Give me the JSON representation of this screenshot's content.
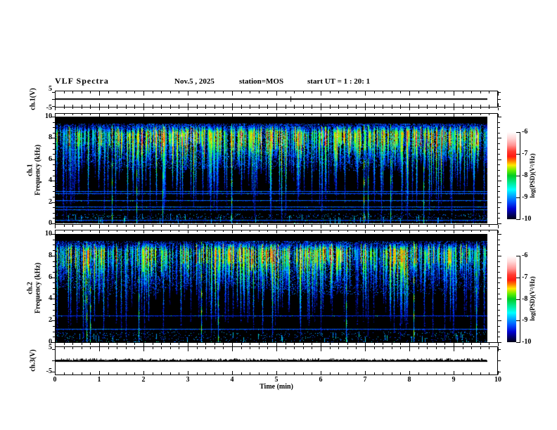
{
  "header": {
    "title": "VLF Spectra",
    "date": "Nov.5 , 2025",
    "station": "station=MOS",
    "start_ut": "start UT =  1 : 20: 1"
  },
  "y_labels": {
    "ch1_volt": "ch.1(V)",
    "ch3_volt": "ch.3(V)",
    "spec1_line1": "ch.1",
    "spec2_line1": "ch.2",
    "freq": "Frequency (kHz)"
  },
  "x_axis": {
    "label": "Time (min)",
    "ticks": [
      "0",
      "1",
      "2",
      "3",
      "4",
      "5",
      "6",
      "7",
      "8",
      "9",
      "10"
    ]
  },
  "volt_axis": {
    "ticks": [
      "5",
      "-5"
    ]
  },
  "freq_axis": {
    "ticks": [
      "10",
      "8",
      "6",
      "4",
      "2",
      "0"
    ],
    "values": [
      10,
      8,
      6,
      4,
      2,
      0
    ]
  },
  "colorbar": {
    "label": "log(PSD)(V²/Hz)",
    "ticks": [
      "-6",
      "-7",
      "-8",
      "-9",
      "-10"
    ],
    "gradient_top_to_bottom": [
      [
        "0%",
        "#ffffff"
      ],
      [
        "7%",
        "#ffd8d8"
      ],
      [
        "15%",
        "#ff9595"
      ],
      [
        "22%",
        "#ff3b30"
      ],
      [
        "28%",
        "#ff1a10"
      ],
      [
        "33%",
        "#ff7a00"
      ],
      [
        "38%",
        "#ffe800"
      ],
      [
        "44%",
        "#66ee00"
      ],
      [
        "50%",
        "#00cc22"
      ],
      [
        "58%",
        "#00e890"
      ],
      [
        "66%",
        "#00ffff"
      ],
      [
        "73%",
        "#00aaff"
      ],
      [
        "80%",
        "#0055ff"
      ],
      [
        "88%",
        "#0000d0"
      ],
      [
        "95%",
        "#000060"
      ],
      [
        "100%",
        "#000015"
      ]
    ]
  },
  "chart_data": {
    "type": "heatmap",
    "subtype": "vlf-spectrogram-multipanel",
    "title": "VLF Spectra",
    "date": "Nov.5 , 2025",
    "station": "MOS",
    "start_ut": "1 : 20: 1",
    "x": {
      "label": "Time (min)",
      "range": [
        0,
        10
      ],
      "data_end": 9.75,
      "major_tick": 1,
      "minor_tick": 0.2
    },
    "panels": [
      {
        "name": "ch.1(V)",
        "kind": "line",
        "ylim": [
          -5,
          5
        ],
        "y_ticks": [
          5,
          -5
        ],
        "signal": "flat constant 0 V line across full record (ends at ~9.75 min)"
      },
      {
        "name": "ch.1 spectrogram",
        "kind": "heatmap",
        "ylabel": "ch.1 Frequency (kHz)",
        "ylim": [
          0,
          10
        ],
        "y_major_tick": 2,
        "y_minor_tick": 0.5,
        "value_scale_log_psd": [
          -10,
          -6
        ],
        "activity_band_khz": [
          4.8,
          9.35
        ],
        "strongest_khz": [
          7,
          9
        ],
        "horizontal_lines": [
          {
            "khz": 3.05
          },
          {
            "khz": 2.8
          },
          {
            "khz": 2.2
          },
          {
            "khz": 1.6
          },
          {
            "khz": 1.3
          },
          {
            "khz": 0.3
          }
        ],
        "noise_band_khz": [
          0.45,
          0.95
        ],
        "full_depth_bursts": 8,
        "description": "dense vertical sferic bursts topping near 9.2 kHz, strongest (green/yellow, occasional red) 7-9 kHz, blue tails fading toward 3-5 kHz, black background, narrow blue horizontal interference lines at low frequency"
      },
      {
        "name": "ch.2 spectrogram",
        "kind": "heatmap",
        "ylabel": "ch.2 Frequency (kHz)",
        "ylim": [
          0,
          10
        ],
        "y_major_tick": 2,
        "y_minor_tick": 0.5,
        "value_scale_log_psd": [
          -10,
          -6
        ],
        "activity_band_khz": [
          4.8,
          9.3
        ],
        "strongest_khz": [
          7,
          9
        ],
        "horizontal_lines": [
          {
            "khz": 2.45,
            "dim": true
          },
          {
            "khz": 1.25
          }
        ],
        "noise_band_khz": [
          0.15,
          1.0
        ],
        "full_depth_bursts": 8,
        "description": "same sferic activity pattern as ch.1 with dotted noise band below 1 kHz"
      },
      {
        "name": "ch.3(V)",
        "kind": "line",
        "ylim": [
          -5,
          5
        ],
        "y_ticks": [
          5,
          -5
        ],
        "signal": "~0 V baseline with small positive noise spikes"
      }
    ],
    "colorbar": {
      "label": "log(PSD)(V²/Hz)",
      "range_top_to_bottom": [
        -6,
        -10
      ],
      "ticks": [
        -6,
        -7,
        -8,
        -9,
        -10
      ]
    },
    "render_seeds": {
      "spec1": 1234567,
      "spec2": 7654321,
      "wave3": 424242
    }
  }
}
